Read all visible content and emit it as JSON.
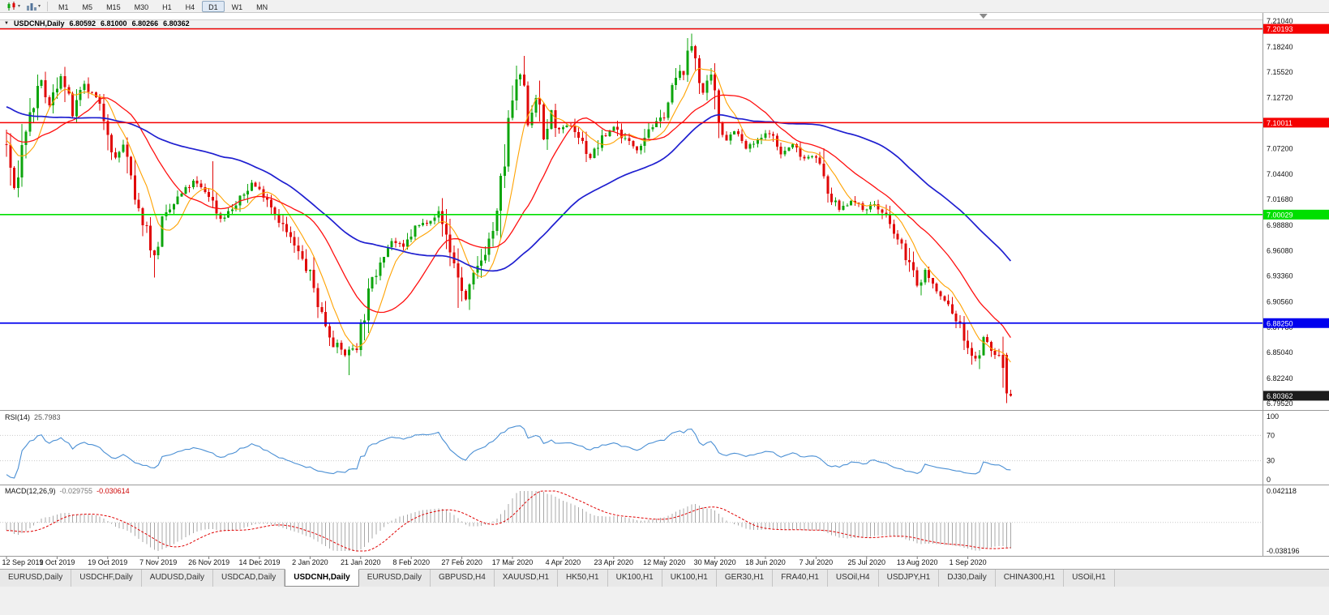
{
  "toolbar": {
    "timeframes": [
      {
        "label": "M1",
        "active": false
      },
      {
        "label": "M5",
        "active": false
      },
      {
        "label": "M15",
        "active": false
      },
      {
        "label": "M30",
        "active": false
      },
      {
        "label": "H1",
        "active": false
      },
      {
        "label": "H4",
        "active": false
      },
      {
        "label": "D1",
        "active": true
      },
      {
        "label": "W1",
        "active": false
      },
      {
        "label": "MN",
        "active": false
      }
    ]
  },
  "chart_header": {
    "collapse_icon": "▼",
    "title": "USDCNH,Daily",
    "open": "6.80592",
    "high": "6.81000",
    "low": "6.80266",
    "close": "6.80362"
  },
  "rsi_panel": {
    "label": "RSI(14)",
    "value": "25.7983"
  },
  "macd_panel": {
    "label": "MACD(12,26,9)",
    "value_main": "-0.029755",
    "value_signal": "-0.030614"
  },
  "tabs": [
    {
      "label": "EURUSD,Daily",
      "active": false
    },
    {
      "label": "USDCHF,Daily",
      "active": false
    },
    {
      "label": "AUDUSD,Daily",
      "active": false
    },
    {
      "label": "USDCAD,Daily",
      "active": false
    },
    {
      "label": "USDCNH,Daily",
      "active": true
    },
    {
      "label": "EURUSD,Daily",
      "active": false
    },
    {
      "label": "GBPUSD,H4",
      "active": false
    },
    {
      "label": "XAUUSD,H1",
      "active": false
    },
    {
      "label": "HK50,H1",
      "active": false
    },
    {
      "label": "UK100,H1",
      "active": false
    },
    {
      "label": "UK100,H1",
      "active": false
    },
    {
      "label": "GER30,H1",
      "active": false
    },
    {
      "label": "FRA40,H1",
      "active": false
    },
    {
      "label": "USOil,H4",
      "active": false
    },
    {
      "label": "USDJPY,H1",
      "active": false
    },
    {
      "label": "DJ30,Daily",
      "active": false
    },
    {
      "label": "CHINA300,H1",
      "active": false
    },
    {
      "label": "USOil,H1",
      "active": false
    }
  ],
  "chart_data": {
    "type": "candlestick",
    "symbol": "USDCNH",
    "period": "Daily",
    "price_axis": {
      "min": 6.7952,
      "max": 7.2104,
      "ticks": [
        {
          "label": "7.21040",
          "v": 7.2104
        },
        {
          "label": "7.18240",
          "v": 7.1824
        },
        {
          "label": "7.15520",
          "v": 7.1552
        },
        {
          "label": "7.12720",
          "v": 7.1272
        },
        {
          "label": "7.07200",
          "v": 7.072
        },
        {
          "label": "7.04400",
          "v": 7.044
        },
        {
          "label": "7.01680",
          "v": 7.0168
        },
        {
          "label": "6.98880",
          "v": 6.9888
        },
        {
          "label": "6.96080",
          "v": 6.9608
        },
        {
          "label": "6.93360",
          "v": 6.9336
        },
        {
          "label": "6.90560",
          "v": 6.9056
        },
        {
          "label": "6.87780",
          "v": 6.8778
        },
        {
          "label": "6.85040",
          "v": 6.8504
        },
        {
          "label": "6.82240",
          "v": 6.8224
        },
        {
          "label": "6.79520",
          "v": 6.7952
        }
      ]
    },
    "hlines": [
      {
        "v": 7.20193,
        "label": "7.20193",
        "color": "#f50000",
        "width": 1.4
      },
      {
        "v": 7.10011,
        "label": "7.10011",
        "color": "#f50000",
        "width": 1.4
      },
      {
        "v": 7.00029,
        "label": "7.00029",
        "color": "#00df00",
        "width": 1.6
      },
      {
        "v": 6.8825,
        "label": "6.88250",
        "color": "#0000ee",
        "width": 1.8
      }
    ],
    "current_price": {
      "v": 6.80362,
      "label": "6.80362",
      "badge": "#1c1c1c"
    },
    "date_labels": [
      {
        "label": "12 Sep 2019",
        "i": 0
      },
      {
        "label": "1 Oct 2019",
        "i": 13
      },
      {
        "label": "19 Oct 2019",
        "i": 26
      },
      {
        "label": "7 Nov 2019",
        "i": 39
      },
      {
        "label": "26 Nov 2019",
        "i": 52
      },
      {
        "label": "14 Dec 2019",
        "i": 65
      },
      {
        "label": "2 Jan 2020",
        "i": 78
      },
      {
        "label": "21 Jan 2020",
        "i": 91
      },
      {
        "label": "8 Feb 2020",
        "i": 104
      },
      {
        "label": "27 Feb 2020",
        "i": 117
      },
      {
        "label": "17 Mar 2020",
        "i": 130
      },
      {
        "label": "4 Apr 2020",
        "i": 143
      },
      {
        "label": "23 Apr 2020",
        "i": 156
      },
      {
        "label": "12 May 2020",
        "i": 169
      },
      {
        "label": "30 May 2020",
        "i": 182
      },
      {
        "label": "18 Jun 2020",
        "i": 195
      },
      {
        "label": "7 Jul 2020",
        "i": 208
      },
      {
        "label": "25 Jul 2020",
        "i": 221
      },
      {
        "label": "13 Aug 2020",
        "i": 234
      },
      {
        "label": "1 Sep 2020",
        "i": 247
      }
    ],
    "candle_up": "#0da50d",
    "candle_down": "#e00707",
    "moving_averages": [
      {
        "period": 8,
        "color": "#ffa200",
        "width": 1.1
      },
      {
        "period": 21,
        "color": "#ff1010",
        "width": 1.3
      },
      {
        "period": 55,
        "color": "#1f1fd0",
        "width": 1.7
      }
    ],
    "rsi": {
      "period": 14,
      "color": "#4a8fd4",
      "last": 25.7983,
      "scale": [
        {
          "label": "100",
          "v": 100,
          "line": false
        },
        {
          "label": "70",
          "v": 70,
          "line": true
        },
        {
          "label": "30",
          "v": 30,
          "line": true
        },
        {
          "label": "0",
          "v": 0,
          "line": false
        }
      ]
    },
    "macd": {
      "fast": 12,
      "slow": 26,
      "signal": 9,
      "hist_color": "#a8a8a8",
      "signal_color": "#e00000",
      "axis_max": 0.042118,
      "axis_min": -0.038196,
      "scale": [
        {
          "label": "0.042118",
          "v": 0.042118
        },
        {
          "label": "-0.038196",
          "v": -0.038196
        }
      ]
    },
    "prehistory": 60,
    "count": 259,
    "seed": 7,
    "shift_marker_index": 251,
    "price_path": [
      [
        -60,
        7.165
      ],
      [
        -40,
        7.14
      ],
      [
        -25,
        7.115
      ],
      [
        -12,
        7.09
      ],
      [
        -4,
        7.082
      ],
      [
        0,
        7.075
      ],
      [
        2,
        7.028
      ],
      [
        5,
        7.095
      ],
      [
        9,
        7.145
      ],
      [
        11,
        7.118
      ],
      [
        14,
        7.152
      ],
      [
        17,
        7.108
      ],
      [
        20,
        7.14
      ],
      [
        23,
        7.125
      ],
      [
        26,
        7.095
      ],
      [
        28,
        7.06
      ],
      [
        30,
        7.077
      ],
      [
        33,
        7.012
      ],
      [
        36,
        6.985
      ],
      [
        38,
        6.955
      ],
      [
        40,
        6.992
      ],
      [
        44,
        7.018
      ],
      [
        48,
        7.036
      ],
      [
        52,
        7.022
      ],
      [
        55,
        6.996
      ],
      [
        59,
        7.01
      ],
      [
        63,
        7.035
      ],
      [
        67,
        7.018
      ],
      [
        71,
        6.988
      ],
      [
        75,
        6.958
      ],
      [
        78,
        6.934
      ],
      [
        81,
        6.892
      ],
      [
        84,
        6.862
      ],
      [
        87,
        6.848
      ],
      [
        90,
        6.86
      ],
      [
        93,
        6.912
      ],
      [
        96,
        6.953
      ],
      [
        99,
        6.972
      ],
      [
        102,
        6.964
      ],
      [
        105,
        6.986
      ],
      [
        108,
        6.993
      ],
      [
        111,
        7.002
      ],
      [
        113,
        6.978
      ],
      [
        116,
        6.932
      ],
      [
        118,
        6.908
      ],
      [
        120,
        6.931
      ],
      [
        123,
        6.962
      ],
      [
        126,
        6.995
      ],
      [
        128,
        7.06
      ],
      [
        130,
        7.125
      ],
      [
        132,
        7.152
      ],
      [
        134,
        7.1
      ],
      [
        136,
        7.13
      ],
      [
        138,
        7.082
      ],
      [
        140,
        7.112
      ],
      [
        142,
        7.09
      ],
      [
        145,
        7.098
      ],
      [
        148,
        7.078
      ],
      [
        150,
        7.062
      ],
      [
        153,
        7.082
      ],
      [
        156,
        7.096
      ],
      [
        159,
        7.082
      ],
      [
        162,
        7.072
      ],
      [
        165,
        7.094
      ],
      [
        168,
        7.102
      ],
      [
        170,
        7.122
      ],
      [
        172,
        7.148
      ],
      [
        174,
        7.158
      ],
      [
        176,
        7.183
      ],
      [
        177,
        7.172
      ],
      [
        179,
        7.132
      ],
      [
        181,
        7.148
      ],
      [
        183,
        7.102
      ],
      [
        185,
        7.082
      ],
      [
        187,
        7.092
      ],
      [
        190,
        7.072
      ],
      [
        193,
        7.08
      ],
      [
        196,
        7.09
      ],
      [
        199,
        7.066
      ],
      [
        202,
        7.076
      ],
      [
        205,
        7.062
      ],
      [
        208,
        7.066
      ],
      [
        211,
        7.022
      ],
      [
        214,
        7.006
      ],
      [
        217,
        7.016
      ],
      [
        220,
        7.006
      ],
      [
        223,
        7.012
      ],
      [
        226,
        6.996
      ],
      [
        229,
        6.972
      ],
      [
        232,
        6.948
      ],
      [
        234,
        6.922
      ],
      [
        236,
        6.94
      ],
      [
        239,
        6.916
      ],
      [
        242,
        6.902
      ],
      [
        245,
        6.878
      ],
      [
        247,
        6.858
      ],
      [
        249,
        6.842
      ],
      [
        251,
        6.866
      ],
      [
        253,
        6.852
      ],
      [
        255,
        6.846
      ],
      [
        256,
        6.836
      ],
      [
        257,
        6.806
      ],
      [
        258,
        6.8036
      ]
    ],
    "key_candles": [
      {
        "i": 38,
        "low": 6.932
      },
      {
        "i": 53,
        "high": 7.058
      },
      {
        "i": 88,
        "low": 6.826
      },
      {
        "i": 116,
        "low": 6.899
      },
      {
        "i": 131,
        "high": 7.162
      },
      {
        "i": 176,
        "high": 7.1969
      },
      {
        "i": 257,
        "open": 6.848,
        "high": 6.85,
        "low": 6.7955,
        "close": 6.806
      },
      {
        "i": 258,
        "open": 6.80592,
        "high": 6.81,
        "low": 6.80266,
        "close": 6.80362
      }
    ]
  }
}
